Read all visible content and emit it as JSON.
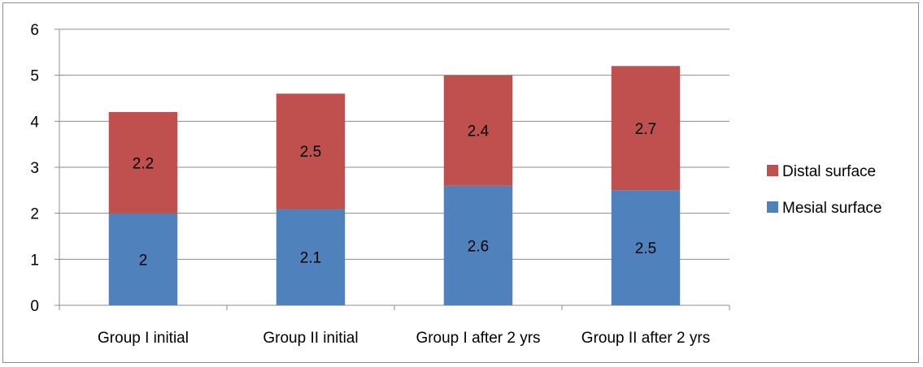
{
  "chart_data": {
    "type": "bar",
    "stacked": true,
    "categories": [
      "Group I initial",
      "Group II initial",
      "Group I after 2 yrs",
      "Group II after 2 yrs"
    ],
    "series": [
      {
        "name": "Mesial surface",
        "values": [
          2,
          2.1,
          2.6,
          2.5
        ],
        "color": "#4f81bd"
      },
      {
        "name": "Distal surface",
        "values": [
          2.2,
          2.5,
          2.4,
          2.7
        ],
        "color": "#c0504d"
      }
    ],
    "ylim": [
      0,
      6
    ],
    "yticks": [
      "0",
      "1",
      "2",
      "3",
      "4",
      "5",
      "6"
    ],
    "grid": true,
    "legend": "right",
    "title": "",
    "xlabel": "",
    "ylabel": ""
  }
}
